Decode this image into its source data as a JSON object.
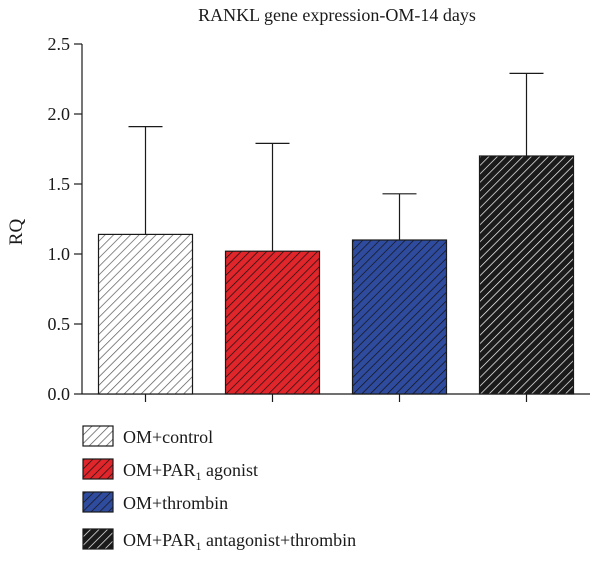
{
  "chart_data": {
    "type": "bar",
    "title": "RANKL gene expression-OM-14 days",
    "xlabel": "",
    "ylabel": "RQ",
    "ylim": [
      0,
      2.5
    ],
    "yticks": [
      "0.0",
      "0.5",
      "1.0",
      "1.5",
      "2.0",
      "2.5"
    ],
    "grid": false,
    "legend_position": "bottom-left",
    "categories": [
      "OM+control",
      "OM+PAR1 agonist",
      "OM+thrombin",
      "OM+PAR1 antagonist+thrombin"
    ],
    "series": [
      {
        "values": [
          1.14,
          1.02,
          1.1,
          1.7
        ],
        "error_upper": [
          1.91,
          1.79,
          1.43,
          2.29
        ]
      }
    ]
  },
  "legend": [
    {
      "prefix": "OM+control",
      "sub": "",
      "suffix": "",
      "color": "#ffffff",
      "stripe": "#555555"
    },
    {
      "prefix": "OM+PAR",
      "sub": "1",
      "suffix": " agonist",
      "color": "#e0252b",
      "stripe": "#111111"
    },
    {
      "prefix": "OM+thrombin",
      "sub": "",
      "suffix": "",
      "color": "#2f4b9e",
      "stripe": "#111111"
    },
    {
      "prefix": "OM+PAR",
      "sub": "1",
      "suffix": " antagonist+thrombin",
      "color": "#1a1a1a",
      "stripe": "#ffffff"
    }
  ]
}
